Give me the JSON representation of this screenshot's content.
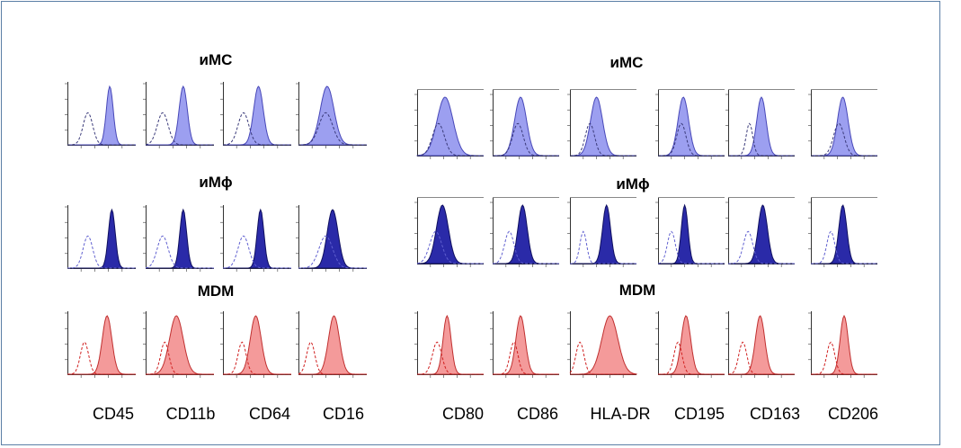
{
  "left_block": {
    "rows": [
      {
        "title": "иMC",
        "scheme": "light-blue"
      },
      {
        "title": "иMϕ",
        "scheme": "dark-blue"
      },
      {
        "title": "MDM",
        "scheme": "red"
      }
    ],
    "markers": [
      "CD45",
      "CD11b",
      "CD64",
      "CD16"
    ]
  },
  "right_block": {
    "rows": [
      {
        "title": "иMC",
        "scheme": "light-blue"
      },
      {
        "title": "иMϕ",
        "scheme": "dark-blue"
      },
      {
        "title": "MDM",
        "scheme": "red"
      }
    ],
    "markers": [
      "CD80",
      "CD86",
      "HLA-DR",
      "CD195",
      "CD163",
      "CD206"
    ]
  },
  "colors": {
    "frame": "#5b7fa6",
    "light-blue": {
      "fill": "#9c9ff0",
      "stroke": "#4848b8",
      "dash": "#3a3a7a"
    },
    "dark-blue": {
      "fill": "#2a2aa8",
      "stroke": "#101060",
      "dash": "#6060d0"
    },
    "red": {
      "fill": "#f49a9a",
      "stroke": "#c03030",
      "dash": "#d02020"
    }
  },
  "chart_data": {
    "type": "histogram-grid",
    "note": "flow cytometry overlays: dashed = isotype control, filled = marker",
    "panels": {
      "left": [
        [
          {
            "c": 0.3,
            "w": 0.07,
            "f": 0.62,
            "fw": 0.05
          },
          {
            "c": 0.25,
            "w": 0.08,
            "f": 0.55,
            "fw": 0.06
          },
          {
            "c": 0.3,
            "w": 0.08,
            "f": 0.52,
            "fw": 0.07
          },
          {
            "c": 0.4,
            "w": 0.1,
            "f": 0.42,
            "fw": 0.1
          }
        ],
        [
          {
            "c": 0.3,
            "w": 0.07,
            "f": 0.65,
            "fw": 0.05
          },
          {
            "c": 0.25,
            "w": 0.08,
            "f": 0.55,
            "fw": 0.05
          },
          {
            "c": 0.3,
            "w": 0.08,
            "f": 0.55,
            "fw": 0.05
          },
          {
            "c": 0.4,
            "w": 0.1,
            "f": 0.5,
            "fw": 0.08
          }
        ],
        [
          {
            "c": 0.25,
            "w": 0.06,
            "f": 0.58,
            "fw": 0.07
          },
          {
            "c": 0.28,
            "w": 0.06,
            "f": 0.45,
            "fw": 0.1
          },
          {
            "c": 0.28,
            "w": 0.06,
            "f": 0.48,
            "fw": 0.08
          },
          {
            "c": 0.18,
            "w": 0.06,
            "f": 0.52,
            "fw": 0.08
          }
        ]
      ],
      "right": [
        [
          {
            "c": 0.32,
            "w": 0.09,
            "f": 0.42,
            "fw": 0.12
          },
          {
            "c": 0.38,
            "w": 0.08,
            "f": 0.42,
            "fw": 0.09
          },
          {
            "c": 0.3,
            "w": 0.07,
            "f": 0.4,
            "fw": 0.09
          },
          {
            "c": 0.35,
            "w": 0.07,
            "f": 0.38,
            "fw": 0.08
          },
          {
            "c": 0.32,
            "w": 0.05,
            "f": 0.5,
            "fw": 0.07
          },
          {
            "c": 0.42,
            "w": 0.08,
            "f": 0.48,
            "fw": 0.08
          }
        ],
        [
          {
            "c": 0.28,
            "w": 0.09,
            "f": 0.38,
            "fw": 0.09
          },
          {
            "c": 0.25,
            "w": 0.07,
            "f": 0.45,
            "fw": 0.07
          },
          {
            "c": 0.2,
            "w": 0.05,
            "f": 0.55,
            "fw": 0.06
          },
          {
            "c": 0.2,
            "w": 0.06,
            "f": 0.4,
            "fw": 0.05
          },
          {
            "c": 0.3,
            "w": 0.07,
            "f": 0.52,
            "fw": 0.07
          },
          {
            "c": 0.3,
            "w": 0.06,
            "f": 0.48,
            "fw": 0.06
          }
        ],
        [
          {
            "c": 0.3,
            "w": 0.07,
            "f": 0.45,
            "fw": 0.06
          },
          {
            "c": 0.32,
            "w": 0.06,
            "f": 0.42,
            "fw": 0.07
          },
          {
            "c": 0.15,
            "w": 0.06,
            "f": 0.6,
            "fw": 0.12
          },
          {
            "c": 0.3,
            "w": 0.06,
            "f": 0.42,
            "fw": 0.07
          },
          {
            "c": 0.22,
            "w": 0.06,
            "f": 0.48,
            "fw": 0.07
          },
          {
            "c": 0.3,
            "w": 0.06,
            "f": 0.5,
            "fw": 0.06
          }
        ]
      ]
    }
  }
}
